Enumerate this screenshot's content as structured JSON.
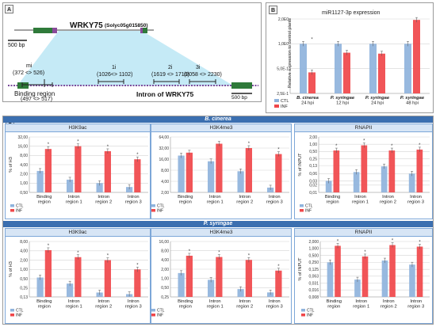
{
  "panel_a": {
    "badge": "A",
    "gene_label": "WRKY75",
    "gene_id": "(Solyc05g015850)",
    "scale_top": "500 bp",
    "scale_bottom": "500 bp",
    "intron_title": "Intron of WRKY75",
    "binding_label": "Binding region",
    "binding_range": "(497 <> 517)",
    "regions": [
      {
        "name": "mi",
        "range": "(372 <> 526)"
      },
      {
        "name": "1i",
        "range": "(1026<> 1102)"
      },
      {
        "name": "2i",
        "range": "(1619 <> 1719)"
      },
      {
        "name": "3i",
        "range": "(2058 <> 2230)"
      }
    ]
  },
  "panel_b": {
    "badge": "B",
    "title": "miR1127-3p expression",
    "ylabel": "Relative expression to control plants",
    "legend": [
      "CTL",
      "INF"
    ]
  },
  "panel_c": {
    "badge": "C",
    "sections": [
      {
        "band": "B. cinerea",
        "titles": [
          "H3K9ac",
          "H3K4me3",
          "RNAPII"
        ]
      },
      {
        "band": "P. syringae",
        "titles": [
          "H3K9ac",
          "H3K4me3",
          "RNAPII"
        ]
      }
    ]
  },
  "chart_data": [
    {
      "type": "bar",
      "id": "b",
      "title": "miR1127-3p expression",
      "ylabel": "Relative expression to control plants",
      "yscale": "log",
      "ylim": [
        0.25,
        2
      ],
      "yticks": [
        0.25,
        0.5,
        1,
        2
      ],
      "yticklabels": [
        "2,5E-1",
        "5,0E-1",
        "1,0E0",
        "2,0E0"
      ],
      "categories": [
        [
          "B. cinerea",
          "24 hpi"
        ],
        [
          "P. syringae",
          "12 hpi"
        ],
        [
          "P. syringae",
          "24 hpi"
        ],
        [
          "P. syringae",
          "48 hpi"
        ]
      ],
      "series": [
        {
          "name": "CTL",
          "values": [
            1.0,
            1.0,
            1.0,
            1.0
          ]
        },
        {
          "name": "INF",
          "values": [
            0.45,
            0.78,
            0.76,
            1.95
          ]
        }
      ],
      "stars": [
        true,
        false,
        false,
        false
      ]
    },
    {
      "type": "bar",
      "id": "c-bc-h3k9ac",
      "title": "H3K9ac",
      "ylabel": "% of H3",
      "yscale": "log",
      "ylim": [
        0.5,
        32
      ],
      "yticks": [
        0.5,
        1,
        2,
        4,
        8,
        16,
        32
      ],
      "yticklabels": [
        "0,50",
        "1,00",
        "2,00",
        "4,00",
        "8,00",
        "16,00",
        "32,00"
      ],
      "categories": [
        [
          "Binding",
          "region"
        ],
        [
          "Intron",
          "region 1"
        ],
        [
          "Intron",
          "region 2"
        ],
        [
          "Intron",
          "region 3"
        ]
      ],
      "series": [
        {
          "name": "CTL",
          "values": [
            2.5,
            1.3,
            1.0,
            0.75
          ]
        },
        {
          "name": "INF",
          "values": [
            13,
            16,
            11,
            6
          ]
        }
      ],
      "stars": [
        true,
        true,
        true,
        true
      ]
    },
    {
      "type": "bar",
      "id": "c-bc-h3k4me3",
      "title": "H3K4me3",
      "yscale": "log",
      "ylim": [
        2,
        64
      ],
      "yticks": [
        2,
        4,
        8,
        16,
        32,
        64
      ],
      "yticklabels": [
        "2,00",
        "4,00",
        "8,00",
        "16,00",
        "32,00",
        "64,00"
      ],
      "categories": [
        [
          "Binding",
          "region"
        ],
        [
          "Intron",
          "region 1"
        ],
        [
          "Intron",
          "region 2"
        ],
        [
          "Intron",
          "region 3"
        ]
      ],
      "series": [
        {
          "name": "CTL",
          "values": [
            20,
            14,
            7.5,
            2.7
          ]
        },
        {
          "name": "INF",
          "values": [
            24,
            42,
            32,
            22
          ]
        }
      ],
      "stars": [
        false,
        false,
        true,
        true
      ]
    },
    {
      "type": "bar",
      "id": "c-bc-rnapii",
      "title": "RNAPII",
      "ylabel": "% of INPUT",
      "yscale": "log",
      "ylim": [
        0.01,
        2
      ],
      "yticks": [
        0.01,
        0.02,
        0.03,
        0.06,
        0.13,
        0.25,
        0.5,
        1,
        2
      ],
      "yticklabels": [
        "0,01",
        "0,02",
        "0,03",
        "0,06",
        "0,13",
        "0,25",
        "0,50",
        "1,00",
        "2,00"
      ],
      "categories": [
        [
          "Binding",
          "region"
        ],
        [
          "Intron",
          "region 1"
        ],
        [
          "Intron",
          "region 2"
        ],
        [
          "Intron",
          "region 3"
        ]
      ],
      "series": [
        {
          "name": "CTL",
          "values": [
            0.03,
            0.07,
            0.12,
            0.06
          ]
        },
        {
          "name": "INF",
          "values": [
            0.55,
            0.9,
            0.55,
            0.6
          ]
        }
      ],
      "stars": [
        true,
        true,
        true,
        true
      ]
    },
    {
      "type": "bar",
      "id": "c-ps-h3k9ac",
      "title": "H3K9ac",
      "ylabel": "% of H3",
      "yscale": "log",
      "ylim": [
        0.13,
        8
      ],
      "yticks": [
        0.13,
        0.25,
        0.5,
        1,
        2,
        4,
        8
      ],
      "yticklabels": [
        "0,13",
        "0,25",
        "0,50",
        "1,00",
        "2,00",
        "4,00",
        "8,00"
      ],
      "categories": [
        [
          "Binding",
          "region"
        ],
        [
          "Intron",
          "region 1"
        ],
        [
          "Intron",
          "region 2"
        ],
        [
          "Intron",
          "region 3"
        ]
      ],
      "series": [
        {
          "name": "CTL",
          "values": [
            0.55,
            0.35,
            0.18,
            0.16
          ]
        },
        {
          "name": "INF",
          "values": [
            4.2,
            2.5,
            2.0,
            1.0
          ]
        }
      ],
      "stars": [
        true,
        true,
        true,
        true
      ]
    },
    {
      "type": "bar",
      "id": "c-ps-h3k4me3",
      "title": "H3K4me3",
      "yscale": "log",
      "ylim": [
        0.25,
        16
      ],
      "yticks": [
        0.25,
        0.5,
        1,
        2,
        4,
        8,
        16
      ],
      "yticklabels": [
        "0,25",
        "0,50",
        "1,00",
        "2,00",
        "4,00",
        "8,00",
        "16,00"
      ],
      "categories": [
        [
          "Binding",
          "region"
        ],
        [
          "Intron",
          "region 1"
        ],
        [
          "Intron",
          "region 2"
        ],
        [
          "Intron",
          "region 3"
        ]
      ],
      "series": [
        {
          "name": "CTL",
          "values": [
            1.5,
            0.9,
            0.45,
            0.35
          ]
        },
        {
          "name": "INF",
          "values": [
            5.5,
            5.0,
            4.0,
            1.8
          ]
        }
      ],
      "stars": [
        true,
        true,
        true,
        true
      ]
    },
    {
      "type": "bar",
      "id": "c-ps-rnapii",
      "title": "RNAPII",
      "ylabel": "% of INPUT",
      "yscale": "log",
      "ylim": [
        0.008,
        2
      ],
      "yticks": [
        0.008,
        0.016,
        0.031,
        0.063,
        0.125,
        0.25,
        0.5,
        1,
        2
      ],
      "yticklabels": [
        "0,008",
        "0,016",
        "0,031",
        "0,063",
        "0,125",
        "0,250",
        "0,500",
        "1,000",
        "2,000"
      ],
      "categories": [
        [
          "Binding",
          "region"
        ],
        [
          "Intron",
          "region 1"
        ],
        [
          "Intron",
          "region 2"
        ],
        [
          "Intron",
          "region 3"
        ]
      ],
      "series": [
        {
          "name": "CTL",
          "values": [
            0.25,
            0.045,
            0.3,
            0.2
          ]
        },
        {
          "name": "INF",
          "values": [
            1.3,
            0.45,
            1.4,
            1.2
          ]
        }
      ],
      "stars": [
        true,
        true,
        true,
        true
      ]
    }
  ],
  "colors": {
    "ctl": "#8fb3dc",
    "inf": "#f0474a",
    "band": "#3b6fb0",
    "subpanel_border": "#7da7d8",
    "subtitle_bg": "#d7e5f5",
    "gene_fill": "#2f7a3a",
    "intron_fill": "#bfe8f5",
    "exon_accent": "#8a4a9a"
  }
}
